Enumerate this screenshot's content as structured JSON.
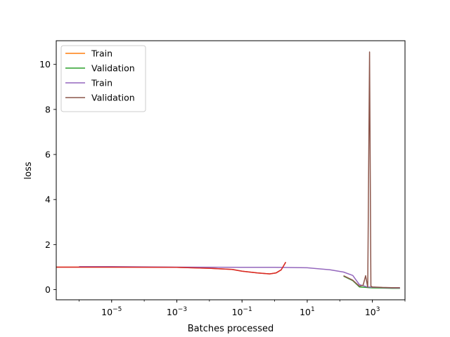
{
  "chart_data": {
    "type": "line",
    "title": "",
    "xlabel": "Batches processed",
    "ylabel": "loss",
    "xscale": "log",
    "xlim": [
      2e-07,
      10000
    ],
    "ylim": [
      -0.45,
      11.05
    ],
    "grid": false,
    "legend_position": "top-left",
    "x_ticks": [
      {
        "value": 1e-05,
        "base": "10",
        "exp": "−5"
      },
      {
        "value": 0.001,
        "base": "10",
        "exp": "−3"
      },
      {
        "value": 0.1,
        "base": "10",
        "exp": "−1"
      },
      {
        "value": 10,
        "base": "10",
        "exp": "1"
      },
      {
        "value": 1000,
        "base": "10",
        "exp": "3"
      }
    ],
    "y_ticks": [
      0,
      2,
      4,
      6,
      8,
      10
    ],
    "series": [
      {
        "name": "Train",
        "color": "#ff7f0e",
        "x": [
          2e-07,
          1e-06,
          1e-05,
          0.0001,
          0.001,
          0.01,
          0.05,
          0.1,
          0.3,
          0.7,
          1.1,
          1.6,
          2.2
        ],
        "y": [
          1.0,
          1.0,
          1.0,
          1.0,
          0.99,
          0.95,
          0.9,
          0.82,
          0.74,
          0.7,
          0.74,
          0.88,
          1.22
        ]
      },
      {
        "name": "Validation",
        "color": "#2ca02c",
        "x": [
          130,
          250,
          400,
          650,
          800,
          1000,
          2000,
          4000,
          7000
        ],
        "y": [
          0.6,
          0.4,
          0.12,
          0.1,
          0.09,
          0.08,
          0.07,
          0.06,
          0.06
        ]
      },
      {
        "name": "Train",
        "color": "#9467bd",
        "x": [
          1e-06,
          1e-05,
          0.001,
          0.1,
          1,
          10,
          50,
          130,
          250,
          400,
          700,
          1500,
          3000,
          7000
        ],
        "y": [
          1.02,
          1.02,
          1.0,
          0.99,
          0.99,
          0.97,
          0.88,
          0.78,
          0.63,
          0.22,
          0.12,
          0.1,
          0.08,
          0.07
        ]
      },
      {
        "name": "Validation",
        "color": "#8c564b",
        "x": [
          130,
          250,
          400,
          520,
          620,
          720,
          820,
          900,
          1000,
          2000,
          4000,
          7000
        ],
        "y": [
          0.62,
          0.42,
          0.15,
          0.2,
          0.62,
          0.1,
          10.55,
          0.15,
          0.12,
          0.1,
          0.09,
          0.09
        ]
      },
      {
        "name": "",
        "color": "#d62728",
        "x": [
          2e-07,
          1e-05,
          0.001,
          0.01,
          0.05,
          0.1,
          0.3,
          0.7,
          1.1,
          1.6,
          2.2
        ],
        "y": [
          1.0,
          1.0,
          0.99,
          0.95,
          0.9,
          0.82,
          0.74,
          0.7,
          0.74,
          0.88,
          1.22
        ]
      }
    ]
  }
}
